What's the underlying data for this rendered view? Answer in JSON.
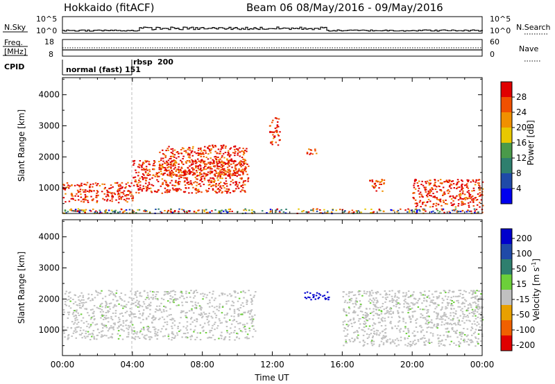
{
  "header": {
    "station": "Hokkaido (fitACF)",
    "beam_range": "Beam 06  08/May/2016 - 09/May/2016"
  },
  "top_panels": {
    "nsky_label": "N.Sky",
    "nsky_ticks_left": [
      "10^5",
      "10^0"
    ],
    "nsky_ticks_right": [
      "10^5",
      "10^0"
    ],
    "nsearch_label": "N.Search",
    "freq_label_1": "Freq.",
    "freq_label_2": "[MHz]",
    "freq_ticks_left": [
      "18",
      "8"
    ],
    "freq_ticks_right": [
      "60",
      "0"
    ],
    "nave_label": "Nave",
    "cpid_label": "CPID",
    "cpid_modes": [
      "normal (fast)",
      "151",
      "rbsp",
      "200"
    ]
  },
  "chart_data": [
    {
      "type": "heatmap",
      "name": "power",
      "ylabel": "Slant Range [km]",
      "xlabel": "",
      "x_ticks": [
        "00:00",
        "04:00",
        "08:00",
        "12:00",
        "16:00",
        "20:00",
        "00:00"
      ],
      "x_hours": [
        0,
        4,
        8,
        12,
        16,
        20,
        24
      ],
      "y_ticks": [
        1000,
        2000,
        3000,
        4000
      ],
      "ylim": [
        180,
        4550
      ],
      "xlim": [
        0,
        24
      ],
      "colorbar_label": "Power [dB]",
      "colorbar_ticks": [
        4,
        8,
        12,
        16,
        20,
        24,
        28
      ],
      "colorbar_colors": [
        "#0000ee",
        "#1f4aa8",
        "#2e7f6e",
        "#4a9a4a",
        "#e8c800",
        "#f09000",
        "#f05000",
        "#e00000"
      ],
      "echo_regions": [
        {
          "x": [
            0.0,
            4.0
          ],
          "y": [
            550,
            1200
          ],
          "level": "high"
        },
        {
          "x": [
            4.0,
            10.6
          ],
          "y": [
            850,
            1900
          ],
          "level": "high"
        },
        {
          "x": [
            5.5,
            10.5
          ],
          "y": [
            1400,
            2400
          ],
          "level": "high"
        },
        {
          "x": [
            11.8,
            12.4
          ],
          "y": [
            2400,
            3300
          ],
          "level": "high"
        },
        {
          "x": [
            13.8,
            14.5
          ],
          "y": [
            2100,
            2300
          ],
          "level": "high"
        },
        {
          "x": [
            17.5,
            18.4
          ],
          "y": [
            900,
            1300
          ],
          "level": "high"
        },
        {
          "x": [
            20.0,
            24.0
          ],
          "y": [
            400,
            1300
          ],
          "level": "high"
        },
        {
          "x": [
            0.0,
            24.0
          ],
          "y": [
            200,
            350
          ],
          "level": "mixed"
        }
      ]
    },
    {
      "type": "heatmap",
      "name": "velocity",
      "ylabel": "Slant Range [km]",
      "xlabel": "Time UT",
      "x_ticks": [
        "00:00",
        "04:00",
        "08:00",
        "12:00",
        "16:00",
        "20:00",
        "00:00"
      ],
      "x_hours": [
        0,
        4,
        8,
        12,
        16,
        20,
        24
      ],
      "y_ticks": [
        1000,
        2000,
        3000,
        4000
      ],
      "ylim": [
        180,
        4550
      ],
      "xlim": [
        0,
        24
      ],
      "colorbar_label": "Velocity [m s",
      "colorbar_label_sup": "-1",
      "colorbar_label_end": "]",
      "colorbar_ticks": [
        200,
        100,
        50,
        15,
        -15,
        -50,
        -100,
        -200
      ],
      "colorbar_colors": [
        "#0000cc",
        "#1f4aa8",
        "#2e7f6e",
        "#6ccf3a",
        "#c0c0c0",
        "#e8a000",
        "#f06000",
        "#e00000"
      ],
      "echo_regions": [
        {
          "x": [
            0.0,
            11.0
          ],
          "y": [
            700,
            2300
          ],
          "level": "ground"
        },
        {
          "x": [
            13.8,
            15.2
          ],
          "y": [
            2000,
            2250
          ],
          "level": "away_200"
        },
        {
          "x": [
            16.0,
            24.0
          ],
          "y": [
            500,
            2300
          ],
          "level": "ground"
        }
      ]
    }
  ],
  "colors": {
    "axis": "#000000",
    "ground_scatter": "#c0c0c0"
  }
}
